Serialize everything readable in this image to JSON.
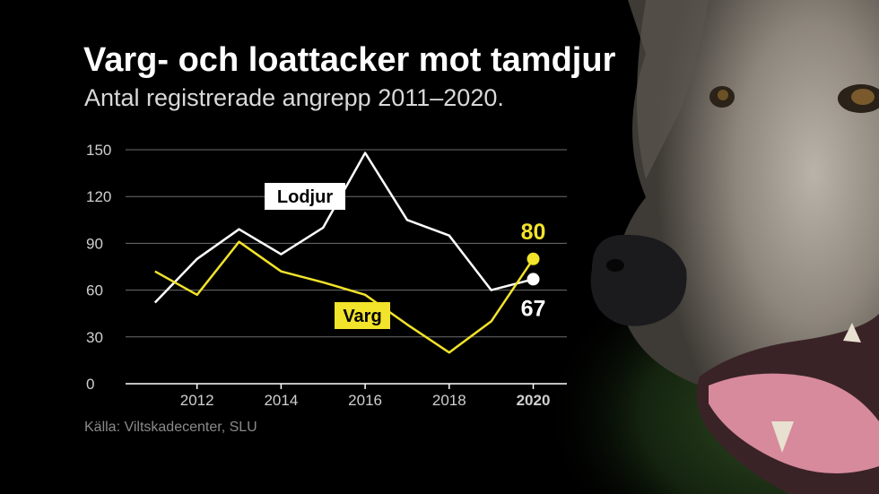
{
  "title": "Varg- och loattacker mot tamdjur",
  "subtitle": "Antal registrerade angrepp 2011–2020.",
  "source": "Källa: Viltskadecenter, SLU",
  "colors": {
    "lodjur": "#ffffff",
    "varg": "#f2e32b",
    "grid": "#6e6e6e",
    "background": "#000000"
  },
  "background_image": "wolf-photo",
  "chart_data": {
    "type": "line",
    "title": "Varg- och loattacker mot tamdjur",
    "subtitle": "Antal registrerade angrepp 2011–2020.",
    "x": [
      2011,
      2012,
      2013,
      2014,
      2015,
      2016,
      2017,
      2018,
      2019,
      2020
    ],
    "x_ticks": [
      "2012",
      "2014",
      "2016",
      "2018",
      "2020"
    ],
    "y_ticks": [
      0,
      30,
      60,
      90,
      120,
      150
    ],
    "ylim": [
      0,
      150
    ],
    "xlim": [
      2010.3,
      2020.8
    ],
    "grid": true,
    "series": [
      {
        "name": "Lodjur",
        "color": "#ffffff",
        "values": [
          52,
          80,
          99,
          83,
          100,
          148,
          105,
          95,
          60,
          67
        ],
        "end_label": "67"
      },
      {
        "name": "Varg",
        "color": "#f2e32b",
        "values": [
          72,
          57,
          91,
          72,
          65,
          57,
          38,
          20,
          40,
          80
        ],
        "end_label": "80"
      }
    ]
  }
}
